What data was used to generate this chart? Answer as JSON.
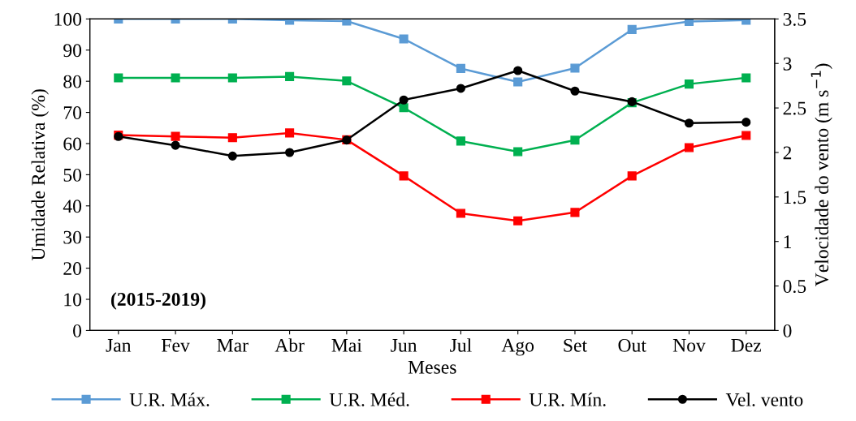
{
  "chart_data": {
    "type": "line",
    "xlabel": "Meses",
    "ylabel": "Umidade Relativa (%)",
    "y2label": "Velocidade do vento (m s$^{−1}$)",
    "categories": [
      "Jan",
      "Fev",
      "Mar",
      "Abr",
      "Mai",
      "Jun",
      "Jul",
      "Ago",
      "Set",
      "Out",
      "Nov",
      "Dez"
    ],
    "series": [
      {
        "name": "U.R. Máx.",
        "color": "#5b9bd5",
        "marker": "square",
        "values": [
          100,
          100,
          100,
          99.6,
          99.3,
          93.6,
          84.1,
          79.8,
          84.2,
          96.6,
          99.2,
          99.6
        ]
      },
      {
        "name": "U.R. Méd.",
        "color": "#00b050",
        "marker": "square",
        "values": [
          81.1,
          81.1,
          81.1,
          81.5,
          80.1,
          71.5,
          60.8,
          57.4,
          61.1,
          73.1,
          79.1,
          81.1
        ]
      },
      {
        "name": "U.R. Mín.",
        "color": "#ff0000",
        "marker": "square",
        "values": [
          62.7,
          62.3,
          61.9,
          63.4,
          61.2,
          49.6,
          37.6,
          35.2,
          37.9,
          49.6,
          58.7,
          62.6
        ]
      },
      {
        "name": "Vel. vento",
        "color": "#000000",
        "marker": "circle",
        "axis": "y2",
        "values": [
          2.18,
          2.08,
          1.96,
          2.0,
          2.14,
          2.59,
          2.72,
          2.92,
          2.69,
          2.57,
          2.33,
          2.34
        ]
      }
    ],
    "ylim": [
      0,
      100
    ],
    "yticks": [
      0,
      10,
      20,
      30,
      40,
      50,
      60,
      70,
      80,
      90,
      100
    ],
    "y2lim": [
      0,
      3.5
    ],
    "y2ticks": [
      0,
      0.5,
      1,
      1.5,
      2,
      2.5,
      3,
      3.5
    ],
    "annotations": [
      "(2015-2019)"
    ],
    "grid": false,
    "legend": "bottom",
    "line_style": "solid"
  }
}
